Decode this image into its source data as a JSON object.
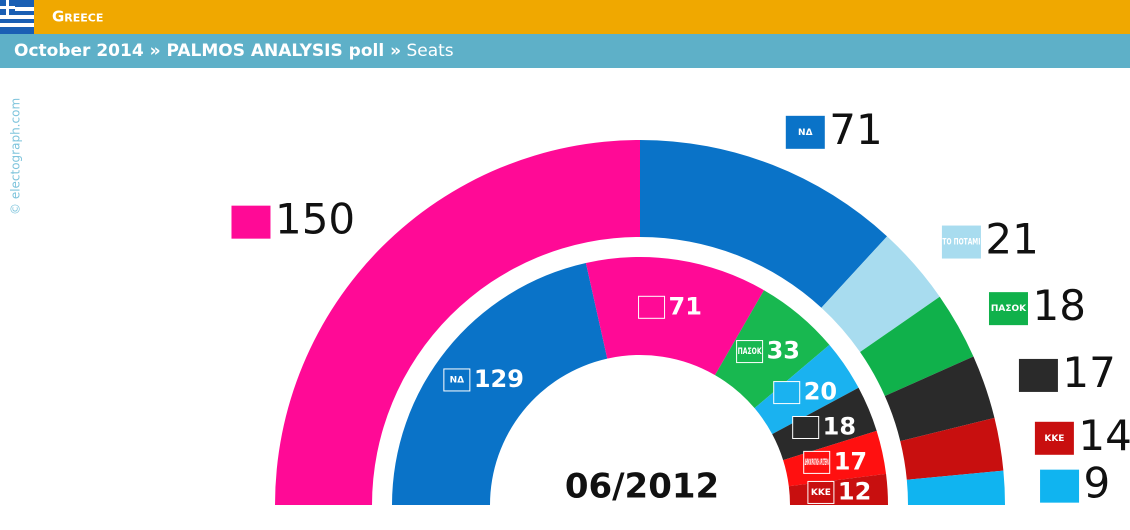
{
  "header": {
    "country": "Greece",
    "title": "October 2014 » PALMOS ANALYSIS poll »",
    "metric": "Seats"
  },
  "credit": "© electograph.com",
  "chart_data": [
    {
      "type": "semicircle-ring",
      "categories": [
        null,
        "ΝΔ",
        "ΤΟ ΠΟΤΑΜΙ",
        "ΠΑΣΟΚ",
        null,
        "ΚΚΕ",
        null
      ],
      "values": [
        150,
        71,
        21,
        18,
        17,
        14,
        9
      ],
      "colors": [
        "#ff0a96",
        "#0a73c8",
        "#a8dcef",
        "#10b14b",
        "#2a2a2a",
        "#c80f0f",
        "#10b4f0"
      ]
    },
    {
      "type": "semicircle-ring",
      "title": "06/2012",
      "categories": [
        "ΝΔ",
        null,
        "ΠΑΣΟΚ",
        null,
        null,
        "ΔΗΜΟΚΡΑΤΙΚΗ ΑΡΙΣΤΕΡΑ",
        "ΚΚΕ"
      ],
      "values": [
        129,
        71,
        33,
        20,
        18,
        17,
        12
      ],
      "colors": [
        "#0a73c8",
        "#ff0a96",
        "#18b850",
        "#1ab2f0",
        "#2a2a2a",
        "#ff1010",
        "#c80f0f"
      ]
    }
  ]
}
